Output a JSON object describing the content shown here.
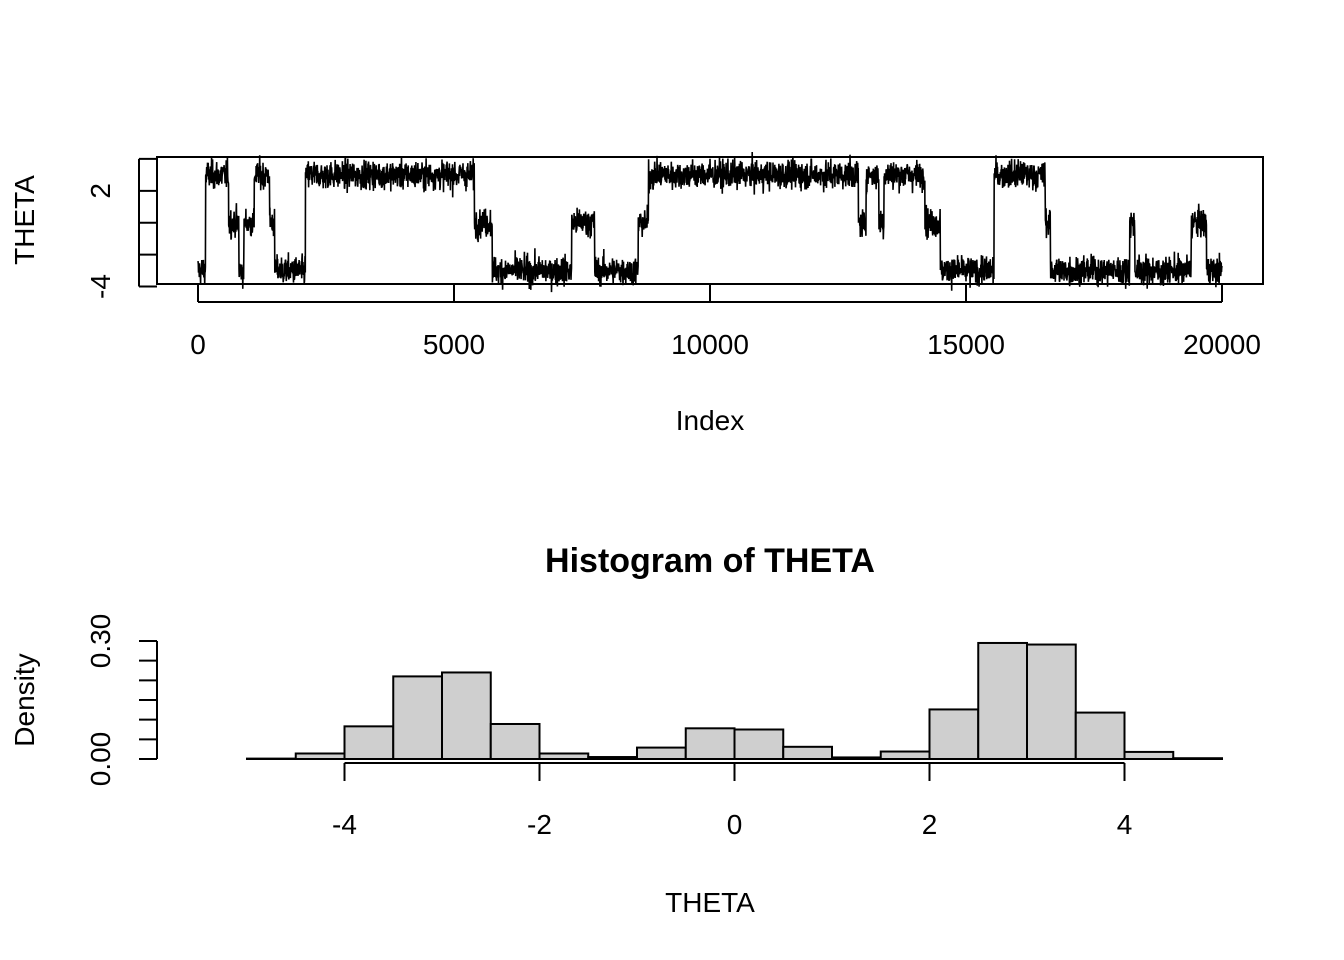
{
  "colors": {
    "background": "#ffffff",
    "ink": "#000000",
    "bar_fill": "#cfcfcf"
  },
  "chart_data": [
    {
      "type": "line",
      "title": "",
      "xlabel": "Index",
      "ylabel": "THETA",
      "xlim": [
        0,
        20000
      ],
      "ylim": [
        -5,
        6
      ],
      "x_ticks": [
        0,
        5000,
        10000,
        15000,
        20000
      ],
      "x_tick_labels": [
        "0",
        "5000",
        "10000",
        "15000",
        "20000"
      ],
      "y_ticks": [
        -4,
        -2,
        0,
        2,
        4
      ],
      "y_tick_labels": [
        "-4",
        "",
        "",
        "2",
        ""
      ],
      "grid": false,
      "noise_sd": 0.45,
      "series": [
        {
          "regimes": [
            {
              "start": 0,
              "end": 150,
              "level": -3
            },
            {
              "start": 150,
              "end": 600,
              "level": 3
            },
            {
              "start": 600,
              "end": 800,
              "level": 0
            },
            {
              "start": 800,
              "end": 900,
              "level": -3
            },
            {
              "start": 900,
              "end": 1100,
              "level": 0
            },
            {
              "start": 1100,
              "end": 1400,
              "level": 3
            },
            {
              "start": 1400,
              "end": 1500,
              "level": 0
            },
            {
              "start": 1500,
              "end": 2100,
              "level": -3
            },
            {
              "start": 2100,
              "end": 5400,
              "level": 3
            },
            {
              "start": 5400,
              "end": 5750,
              "level": 0
            },
            {
              "start": 5750,
              "end": 7300,
              "level": -3
            },
            {
              "start": 7300,
              "end": 7750,
              "level": 0
            },
            {
              "start": 7750,
              "end": 8600,
              "level": -3
            },
            {
              "start": 8600,
              "end": 8800,
              "level": 0
            },
            {
              "start": 8800,
              "end": 12900,
              "level": 3
            },
            {
              "start": 12900,
              "end": 13050,
              "level": 0
            },
            {
              "start": 13050,
              "end": 13300,
              "level": 3
            },
            {
              "start": 13300,
              "end": 13400,
              "level": 0
            },
            {
              "start": 13400,
              "end": 14200,
              "level": 3
            },
            {
              "start": 14200,
              "end": 14500,
              "level": 0
            },
            {
              "start": 14500,
              "end": 15550,
              "level": -3
            },
            {
              "start": 15550,
              "end": 16550,
              "level": 3
            },
            {
              "start": 16550,
              "end": 16650,
              "level": 0
            },
            {
              "start": 16650,
              "end": 18200,
              "level": -3
            },
            {
              "start": 18200,
              "end": 18300,
              "level": 0
            },
            {
              "start": 18300,
              "end": 19400,
              "level": -3
            },
            {
              "start": 19400,
              "end": 19700,
              "level": 0
            },
            {
              "start": 19700,
              "end": 20000,
              "level": -3
            }
          ]
        }
      ]
    },
    {
      "type": "bar",
      "title": "Histogram of THETA",
      "xlabel": "THETA",
      "ylabel": "Density",
      "xlim": [
        -4,
        4
      ],
      "ylim": [
        0,
        0.3
      ],
      "x_ticks": [
        -4,
        -2,
        0,
        2,
        4
      ],
      "x_tick_labels": [
        "-4",
        "-2",
        "0",
        "2",
        "4"
      ],
      "y_ticks": [
        0,
        0.05,
        0.1,
        0.15,
        0.2,
        0.25,
        0.3
      ],
      "y_tick_labels": [
        "0.00",
        "",
        "",
        "",
        "",
        "",
        "0.30"
      ],
      "grid": false,
      "bins": [
        {
          "from": -5.5,
          "to": -5.0,
          "density": 0.0
        },
        {
          "from": -5.0,
          "to": -4.5,
          "density": 0.001
        },
        {
          "from": -4.5,
          "to": -4.0,
          "density": 0.014
        },
        {
          "from": -4.0,
          "to": -3.5,
          "density": 0.083
        },
        {
          "from": -3.5,
          "to": -3.0,
          "density": 0.21
        },
        {
          "from": -3.0,
          "to": -2.5,
          "density": 0.22
        },
        {
          "from": -2.5,
          "to": -2.0,
          "density": 0.089
        },
        {
          "from": -2.0,
          "to": -1.5,
          "density": 0.014
        },
        {
          "from": -1.5,
          "to": -1.0,
          "density": 0.005
        },
        {
          "from": -1.0,
          "to": -0.5,
          "density": 0.029
        },
        {
          "from": -0.5,
          "to": 0.0,
          "density": 0.078
        },
        {
          "from": 0.0,
          "to": 0.5,
          "density": 0.075
        },
        {
          "from": 0.5,
          "to": 1.0,
          "density": 0.031
        },
        {
          "from": 1.0,
          "to": 1.5,
          "density": 0.004
        },
        {
          "from": 1.5,
          "to": 2.0,
          "density": 0.019
        },
        {
          "from": 2.0,
          "to": 2.5,
          "density": 0.126
        },
        {
          "from": 2.5,
          "to": 3.0,
          "density": 0.295
        },
        {
          "from": 3.0,
          "to": 3.5,
          "density": 0.291
        },
        {
          "from": 3.5,
          "to": 4.0,
          "density": 0.118
        },
        {
          "from": 4.0,
          "to": 4.5,
          "density": 0.018
        },
        {
          "from": 4.5,
          "to": 5.0,
          "density": 0.002
        }
      ]
    }
  ]
}
